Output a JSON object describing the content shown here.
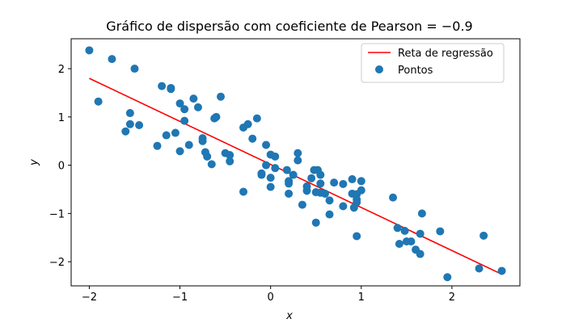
{
  "chart_data": {
    "type": "scatter",
    "title": "Gráfico de dispersão com coeficiente de Pearson = −0.9",
    "xlabel": "x",
    "ylabel": "y",
    "xlim": [
      -2.2,
      2.75
    ],
    "ylim": [
      -2.5,
      2.62
    ],
    "xticks": [
      -2,
      -1,
      0,
      1,
      2
    ],
    "xtick_labels": [
      "−2",
      "−1",
      "0",
      "1",
      "2"
    ],
    "yticks": [
      -2,
      -1,
      0,
      1,
      2
    ],
    "ytick_labels": [
      "−2",
      "−1",
      "0",
      "1",
      "2"
    ],
    "grid": false,
    "legend": {
      "position": "top-right",
      "entries": [
        "Reta de regressão",
        "Pontos"
      ]
    },
    "colors": {
      "line": "#ff0000",
      "points": "#1f77b4"
    },
    "regression_line": {
      "name": "Reta de regressão",
      "x": [
        -2.0,
        2.54
      ],
      "y": [
        1.8,
        -2.25
      ]
    },
    "series": [
      {
        "name": "Pontos",
        "x": [
          -2.0,
          -1.9,
          -1.75,
          -1.5,
          -1.6,
          -1.55,
          -1.55,
          -1.45,
          -1.25,
          -1.2,
          -1.15,
          -1.1,
          -1.1,
          -1.05,
          -1.0,
          -1.0,
          -0.95,
          -0.95,
          -0.9,
          -0.85,
          -0.8,
          -0.75,
          -0.75,
          -0.72,
          -0.7,
          -0.65,
          -0.62,
          -0.6,
          -0.55,
          -0.5,
          -0.45,
          -0.45,
          -0.3,
          -0.3,
          -0.25,
          -0.2,
          -0.15,
          -0.1,
          -0.05,
          -0.1,
          -0.05,
          0.0,
          0.0,
          0.05,
          0.05,
          0.0,
          0.2,
          0.2,
          0.2,
          0.25,
          0.3,
          0.3,
          0.35,
          0.4,
          0.4,
          0.45,
          0.5,
          0.5,
          0.52,
          0.55,
          0.55,
          0.55,
          0.6,
          0.65,
          0.65,
          0.7,
          0.8,
          0.8,
          0.9,
          0.9,
          0.92,
          0.95,
          0.95,
          1.0,
          1.0,
          0.95,
          0.95,
          1.35,
          1.4,
          1.42,
          1.48,
          1.5,
          1.55,
          1.6,
          1.65,
          1.65,
          1.67,
          1.87,
          1.95,
          2.3,
          2.35,
          2.55,
          0.18,
          0.48
        ],
        "y": [
          2.38,
          1.32,
          2.2,
          2.0,
          0.7,
          1.08,
          0.85,
          0.83,
          0.4,
          1.64,
          0.62,
          1.6,
          1.58,
          0.67,
          1.28,
          0.29,
          0.92,
          1.16,
          0.42,
          1.38,
          1.2,
          0.56,
          0.5,
          0.27,
          0.18,
          0.02,
          0.97,
          1.0,
          1.42,
          0.25,
          0.21,
          0.08,
          0.78,
          -0.55,
          0.85,
          0.55,
          0.97,
          -0.2,
          0.42,
          -0.17,
          0.0,
          0.22,
          -0.26,
          0.18,
          -0.06,
          -0.45,
          -0.59,
          -0.33,
          -0.38,
          -0.2,
          0.1,
          0.25,
          -0.82,
          -0.44,
          -0.53,
          -0.27,
          -0.56,
          -1.19,
          -0.1,
          -0.2,
          -0.38,
          -0.57,
          -0.59,
          -0.73,
          -1.02,
          -0.36,
          -0.39,
          -0.85,
          -0.29,
          -0.59,
          -0.88,
          -0.6,
          -0.71,
          -0.33,
          -0.52,
          -1.47,
          -0.77,
          -0.67,
          -1.3,
          -1.63,
          -1.36,
          -1.58,
          -1.58,
          -1.75,
          -1.42,
          -1.84,
          -1.0,
          -1.37,
          -2.32,
          -2.14,
          -1.46,
          -2.19,
          -0.1,
          -0.1
        ]
      }
    ]
  }
}
